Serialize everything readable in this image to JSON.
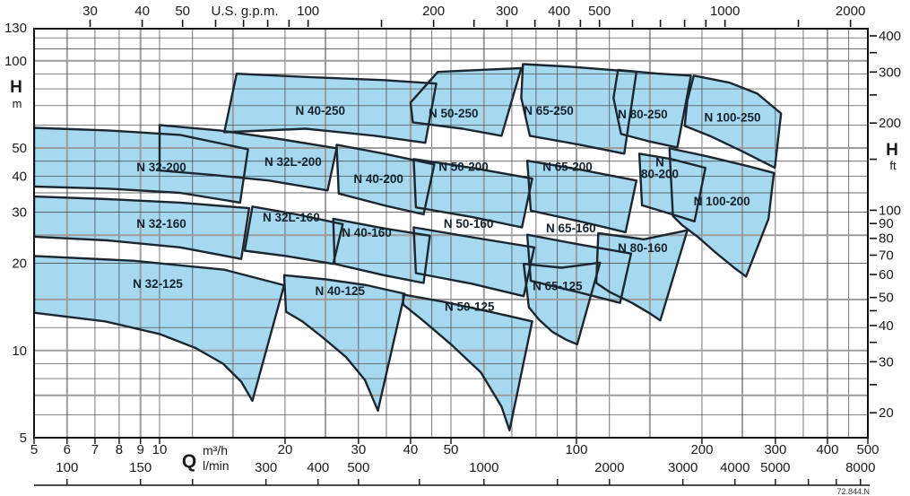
{
  "chart_data": {
    "type": "area",
    "description": "Pump selection chart - head vs flow performance envelopes",
    "corner_code": "72.844.N",
    "axes": {
      "x_bottom_m3h": {
        "label_bold": "Q",
        "unit_top": "m³/h",
        "unit_bottom": "l/min",
        "range": [
          5,
          500
        ],
        "labeled_ticks": [
          5,
          6,
          7,
          8,
          9,
          10,
          20,
          30,
          40,
          50,
          100,
          200,
          300,
          400,
          500
        ]
      },
      "x_bottom_lmin": {
        "labeled_ticks": [
          100,
          150,
          300,
          400,
          500,
          1000,
          2000,
          3000,
          4000,
          5000,
          8000
        ],
        "bar_ticks": [
          100,
          150,
          200,
          300,
          400,
          500,
          700,
          1000,
          1500,
          2000,
          3000,
          4000,
          5000,
          6000,
          7000,
          8000
        ]
      },
      "x_top_usgpm": {
        "label": "U.S. g.p.m.",
        "ticks": [
          30,
          40,
          50,
          60,
          70,
          80,
          90,
          100,
          150,
          200,
          250,
          300,
          350,
          400,
          450,
          500,
          600,
          700,
          800,
          900,
          1000,
          1500,
          2000
        ],
        "labeled_ticks": [
          30,
          40,
          50,
          100,
          200,
          300,
          400,
          500,
          1000,
          2000
        ]
      },
      "y_left_m": {
        "label_bold": "H",
        "unit": "m",
        "range": [
          5,
          130
        ],
        "labeled_ticks": [
          130,
          100,
          50,
          40,
          30,
          20,
          10,
          5
        ]
      },
      "y_right_ft": {
        "label_bold": "H",
        "unit": "ft",
        "ticks": [
          20,
          25,
          30,
          35,
          40,
          45,
          50,
          60,
          70,
          80,
          90,
          100,
          150,
          200,
          250,
          300,
          350,
          400
        ],
        "labeled_ticks": [
          20,
          30,
          40,
          50,
          60,
          70,
          80,
          90,
          100,
          200,
          300,
          400
        ]
      }
    },
    "grid": {
      "q_lines": [
        6,
        7,
        8,
        9,
        10,
        12,
        15,
        20,
        25,
        30,
        35,
        40,
        45,
        50,
        60,
        70,
        80,
        90,
        100,
        120,
        150,
        200,
        250,
        300,
        350,
        400,
        450
      ],
      "q_major": [
        6,
        9,
        15,
        25,
        40,
        60,
        100,
        150,
        250,
        400
      ],
      "h_lines": [
        6,
        7,
        8,
        9,
        10,
        12,
        15,
        20,
        25,
        30,
        35,
        40,
        45,
        50,
        60,
        70,
        80,
        90,
        100,
        110,
        120
      ],
      "h_major": [
        7,
        10,
        15,
        25,
        50,
        100
      ]
    },
    "envelopes": [
      {
        "name": "N 32-125",
        "label_lines": [
          "N 32-125"
        ],
        "label_at": [
          9.9,
          16.9
        ],
        "points": [
          [
            5,
            21.2
          ],
          [
            8.7,
            20.4
          ],
          [
            14.3,
            19
          ],
          [
            19.9,
            16.8
          ],
          [
            16.7,
            6.7
          ],
          [
            15.7,
            7.8
          ],
          [
            14.2,
            9
          ],
          [
            12.2,
            10.2
          ],
          [
            10,
            11.4
          ],
          [
            7.4,
            12.6
          ],
          [
            5,
            13.5
          ]
        ]
      },
      {
        "name": "N 40-125",
        "label_lines": [
          "N 40-125"
        ],
        "label_at": [
          27.1,
          16.0
        ],
        "points": [
          [
            19.9,
            18.2
          ],
          [
            25.1,
            17.6
          ],
          [
            31.4,
            16.8
          ],
          [
            38.7,
            15.7
          ],
          [
            33.4,
            6.2
          ],
          [
            31.1,
            7.9
          ],
          [
            28,
            9.5
          ],
          [
            24.6,
            11.1
          ],
          [
            22,
            12.6
          ],
          [
            20.1,
            13.6
          ]
        ]
      },
      {
        "name": "N 50-125",
        "label_lines": [
          "N 50-125"
        ],
        "label_at": [
          55.4,
          14.1
        ],
        "points": [
          [
            38.4,
            15.6
          ],
          [
            48.3,
            14.7
          ],
          [
            62,
            13.6
          ],
          [
            78.3,
            12.6
          ],
          [
            69.1,
            5.3
          ],
          [
            66.1,
            6.4
          ],
          [
            59,
            8.4
          ],
          [
            50,
            10.5
          ],
          [
            42.8,
            12.7
          ],
          [
            38.4,
            14.4
          ]
        ]
      },
      {
        "name": "N 65-125",
        "label_lines": [
          "N 65-125"
        ],
        "label_at": [
          90.1,
          16.6
        ],
        "points": [
          [
            74.7,
            19.9
          ],
          [
            92.1,
            19.3
          ],
          [
            113.9,
            20.1
          ],
          [
            100.4,
            10.5
          ],
          [
            94.4,
            10.9
          ],
          [
            87.5,
            11.6
          ],
          [
            81.2,
            12.8
          ],
          [
            76.9,
            14.1
          ]
        ]
      },
      {
        "name": "N 32-160",
        "label_lines": [
          "N 32-160"
        ],
        "label_at": [
          10.1,
          27.3
        ],
        "points": [
          [
            5,
            34
          ],
          [
            7.5,
            33.3
          ],
          [
            11.2,
            32.4
          ],
          [
            16.4,
            31
          ],
          [
            15.7,
            20.7
          ],
          [
            11.2,
            22.7
          ],
          [
            7.5,
            24
          ],
          [
            5,
            24.7
          ]
        ]
      },
      {
        "name": "N 32L-160",
        "label_lines": [
          "N 32L-160"
        ],
        "label_at": [
          20.7,
          28.7
        ],
        "points": [
          [
            16.7,
            31.4
          ],
          [
            21.3,
            29.5
          ],
          [
            27.5,
            27.3
          ],
          [
            26.1,
            19.9
          ],
          [
            20.1,
            21.2
          ],
          [
            16,
            22.1
          ]
        ]
      },
      {
        "name": "N 40-160",
        "label_lines": [
          "N 40-160"
        ],
        "label_at": [
          31.4,
          25.4
        ],
        "points": [
          [
            26.1,
            28.5
          ],
          [
            34.5,
            26.4
          ],
          [
            44.5,
            24.9
          ],
          [
            43,
            17.1
          ],
          [
            34.5,
            18.2
          ],
          [
            26.3,
            19.9
          ]
        ]
      },
      {
        "name": "N 50-160",
        "label_lines": [
          "N 50-160"
        ],
        "label_at": [
          55.1,
          27.3
        ],
        "points": [
          [
            40.7,
            26.6
          ],
          [
            56.1,
            24.6
          ],
          [
            79.2,
            22.7
          ],
          [
            74.7,
            15.4
          ],
          [
            56.1,
            17
          ],
          [
            41.2,
            18.5
          ]
        ]
      },
      {
        "name": "N 65-160",
        "label_lines": [
          "N 65-160"
        ],
        "label_at": [
          97.0,
          26.3
        ],
        "points": [
          [
            76.2,
            25.1
          ],
          [
            101.9,
            23.2
          ],
          [
            135.2,
            21.6
          ],
          [
            127.2,
            14.6
          ],
          [
            100.9,
            15.9
          ],
          [
            77.7,
            17.4
          ]
        ]
      },
      {
        "name": "N 80-160",
        "label_lines": [
          "N 80-160"
        ],
        "label_at": [
          144.2,
          22.5
        ],
        "points": [
          [
            112.8,
            25.4
          ],
          [
            145.1,
            24.2
          ],
          [
            184.5,
            26
          ],
          [
            158.9,
            12.7
          ],
          [
            150.3,
            13.4
          ],
          [
            135.9,
            14.6
          ],
          [
            120.3,
            15.9
          ],
          [
            111.6,
            17.1
          ]
        ]
      },
      {
        "name": "N 32-200",
        "label_lines": [
          "N 32-200"
        ],
        "label_at": [
          10.1,
          42.8
        ],
        "points": [
          [
            5,
            58.7
          ],
          [
            7.5,
            57.5
          ],
          [
            11.2,
            55.5
          ],
          [
            16.3,
            49.5
          ],
          [
            15.6,
            32.4
          ],
          [
            11.2,
            35
          ],
          [
            7.5,
            36.2
          ],
          [
            5,
            36.8
          ]
        ]
      },
      {
        "name": "N 32L-200",
        "label_lines": [
          "N 32L-200"
        ],
        "label_at": [
          20.9,
          44.6
        ],
        "points": [
          [
            10,
            60
          ],
          [
            13.9,
            57.5
          ],
          [
            19.1,
            53.9
          ],
          [
            26.6,
            49.9
          ],
          [
            25.3,
            35.7
          ],
          [
            18.3,
            38.6
          ],
          [
            13.6,
            40.3
          ],
          [
            10,
            41.8
          ]
        ]
      },
      {
        "name": "N 40-200",
        "label_lines": [
          "N 40-200"
        ],
        "label_at": [
          33.5,
          39.0
        ],
        "points": [
          [
            26.6,
            51.3
          ],
          [
            34.5,
            47.8
          ],
          [
            45.6,
            43.9
          ],
          [
            43,
            29.5
          ],
          [
            34.5,
            31.7
          ],
          [
            26.9,
            34.8
          ]
        ]
      },
      {
        "name": "N 50-200",
        "label_lines": [
          "N 50-200"
        ],
        "label_at": [
          53.6,
          42.9
        ],
        "points": [
          [
            40.7,
            45.8
          ],
          [
            56.1,
            42.7
          ],
          [
            78.3,
            39.2
          ],
          [
            74,
            26.6
          ],
          [
            56.1,
            28.9
          ],
          [
            41.2,
            31.2
          ]
        ]
      },
      {
        "name": "N 65-200",
        "label_lines": [
          "N 65-200"
        ],
        "label_at": [
          95.2,
          42.9
        ],
        "points": [
          [
            76.2,
            45.2
          ],
          [
            101.9,
            42.1
          ],
          [
            139.3,
            38.6
          ],
          [
            131.1,
            25.6
          ],
          [
            101.9,
            27.9
          ],
          [
            77.7,
            30.4
          ]
        ]
      },
      {
        "name": "N 80-200",
        "label_lines": [
          "N",
          "80-200"
        ],
        "label_at": [
          158.5,
          42.5
        ],
        "points": [
          [
            141.5,
            47.8
          ],
          [
            168.7,
            45.8
          ],
          [
            203.8,
            42.7
          ],
          [
            192,
            27.9
          ],
          [
            164.6,
            29.9
          ],
          [
            143.6,
            31.7
          ]
        ]
      },
      {
        "name": "N 100-200",
        "label_lines": [
          "N 100-200"
        ],
        "label_at": [
          223.2,
          32.6
        ],
        "points": [
          [
            167.1,
            49.9
          ],
          [
            205.8,
            46.8
          ],
          [
            257.6,
            43.3
          ],
          [
            297.6,
            41
          ],
          [
            288.9,
            28.5
          ],
          [
            255.1,
            18
          ],
          [
            239,
            19.3
          ],
          [
            216.3,
            21.7
          ],
          [
            195.9,
            24.6
          ],
          [
            179.1,
            27.1
          ],
          [
            170.4,
            29.1
          ]
        ]
      },
      {
        "name": "N 40-250",
        "label_lines": [
          "N 40-250"
        ],
        "label_at": [
          24.3,
          67.0
        ],
        "points": [
          [
            15.3,
            90.2
          ],
          [
            23.4,
            87.7
          ],
          [
            34.5,
            85.8
          ],
          [
            46.1,
            83.4
          ],
          [
            43.4,
            52.1
          ],
          [
            32.9,
            55.1
          ],
          [
            22.4,
            58.3
          ],
          [
            14.3,
            56.7
          ]
        ]
      },
      {
        "name": "N 50-250",
        "label_lines": [
          "N 50-250"
        ],
        "label_at": [
          50.7,
          65.5
        ],
        "points": [
          [
            46.5,
            91.5
          ],
          [
            59,
            93
          ],
          [
            73.7,
            94.3
          ],
          [
            66.1,
            55.1
          ],
          [
            53.3,
            58.3
          ],
          [
            40.5,
            61.3
          ],
          [
            40,
            71.7
          ]
        ]
      },
      {
        "name": "N 65-250",
        "label_lines": [
          "N 65-250"
        ],
        "label_at": [
          85.8,
          67.0
        ],
        "points": [
          [
            74.4,
            97.4
          ],
          [
            96.9,
            95.4
          ],
          [
            139.3,
            91.5
          ],
          [
            130.2,
            47.8
          ],
          [
            101.9,
            51.3
          ],
          [
            77.3,
            55.1
          ],
          [
            73.7,
            74.4
          ]
        ]
      },
      {
        "name": "N 80-250",
        "label_lines": [
          "N 80-250"
        ],
        "label_at": [
          144.2,
          65.0
        ],
        "points": [
          [
            125.8,
            93
          ],
          [
            156.5,
            90.3
          ],
          [
            188.2,
            88.9
          ],
          [
            174.6,
            50.2
          ],
          [
            148.8,
            52.8
          ],
          [
            127.9,
            55.9
          ],
          [
            122.7,
            74.4
          ]
        ]
      },
      {
        "name": "N 100-250",
        "label_lines": [
          "N 100-250"
        ],
        "label_at": [
          236.7,
          63.6
        ],
        "points": [
          [
            191.1,
            88.9
          ],
          [
            233.1,
            84
          ],
          [
            271.3,
            77.1
          ],
          [
            309.6,
            65.8
          ],
          [
            299.1,
            42.7
          ],
          [
            251.3,
            48.5
          ],
          [
            211,
            54.7
          ],
          [
            181.8,
            59.6
          ],
          [
            184.5,
            73
          ]
        ]
      }
    ],
    "colors": {
      "envelope_fill": "#a6d8ef",
      "envelope_stroke": "#1b2630",
      "grid_minor": "#3d3d3d",
      "grid_major": "#9c9c9c",
      "axis": "#111111",
      "text": "#1a1a1a",
      "label_text": "#14222c"
    }
  }
}
